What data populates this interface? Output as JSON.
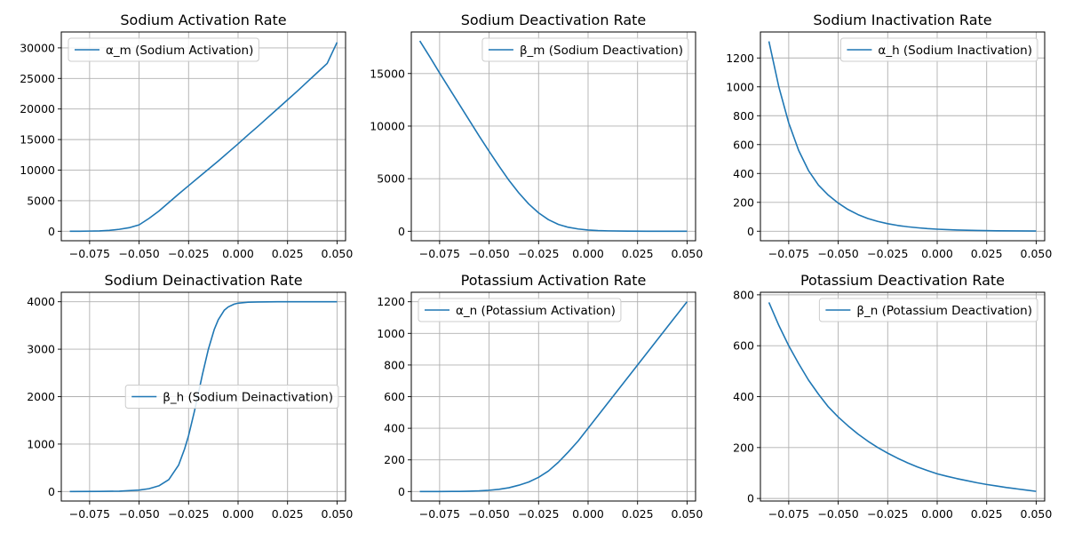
{
  "figure": {
    "line_color": "#1f77b4",
    "grid_color": "#b0b0b0",
    "background": "#ffffff",
    "grid": true
  },
  "chart_data": [
    {
      "type": "line",
      "title": "Sodium Activation Rate",
      "legend_loc": "upper-left",
      "xlim": [
        -0.0893,
        0.0543
      ],
      "ylim": [
        -1550,
        32600
      ],
      "xticks": [
        -0.075,
        -0.05,
        -0.025,
        0,
        0.025,
        0.05
      ],
      "xtick_labels": [
        "−0.075",
        "−0.050",
        "−0.025",
        "0.000",
        "0.025",
        "0.050"
      ],
      "yticks": [
        0,
        5000,
        10000,
        15000,
        20000,
        25000,
        30000
      ],
      "ytick_labels": [
        "0",
        "5000",
        "10000",
        "15000",
        "20000",
        "25000",
        "30000"
      ],
      "series": [
        {
          "name": "α_m (Sodium Activation)",
          "x": [
            -0.085,
            -0.08,
            -0.075,
            -0.07,
            -0.065,
            -0.06,
            -0.055,
            -0.05,
            -0.045,
            -0.04,
            -0.035,
            -0.03,
            -0.025,
            -0.02,
            -0.015,
            -0.01,
            -0.005,
            0,
            0.005,
            0.01,
            0.015,
            0.02,
            0.025,
            0.03,
            0.035,
            0.04,
            0.045,
            0.05
          ],
          "y": [
            5,
            10,
            30,
            60,
            150,
            320,
            580,
            1050,
            2100,
            3300,
            4700,
            6100,
            7450,
            8800,
            10150,
            11500,
            12900,
            14300,
            15750,
            17150,
            18600,
            20050,
            21500,
            22950,
            24450,
            25950,
            27450,
            30900
          ]
        }
      ]
    },
    {
      "type": "line",
      "title": "Sodium Deactivation Rate",
      "legend_loc": "upper-right",
      "xlim": [
        -0.0893,
        0.0543
      ],
      "ylim": [
        -900,
        18950
      ],
      "xticks": [
        -0.075,
        -0.05,
        -0.025,
        0,
        0.025,
        0.05
      ],
      "xtick_labels": [
        "−0.075",
        "−0.050",
        "−0.025",
        "0.000",
        "0.025",
        "0.050"
      ],
      "yticks": [
        0,
        5000,
        10000,
        15000
      ],
      "ytick_labels": [
        "0",
        "5000",
        "10000",
        "15000"
      ],
      "series": [
        {
          "name": "β_m (Sodium Deactivation)",
          "x": [
            -0.085,
            -0.08,
            -0.075,
            -0.07,
            -0.065,
            -0.06,
            -0.055,
            -0.05,
            -0.045,
            -0.04,
            -0.035,
            -0.03,
            -0.025,
            -0.02,
            -0.015,
            -0.01,
            -0.005,
            0,
            0.005,
            0.01,
            0.02,
            0.03,
            0.04,
            0.05
          ],
          "y": [
            18100,
            16600,
            15050,
            13550,
            12050,
            10550,
            9050,
            7600,
            6200,
            4850,
            3650,
            2600,
            1750,
            1100,
            650,
            380,
            220,
            120,
            70,
            40,
            15,
            5,
            2,
            1
          ]
        }
      ]
    },
    {
      "type": "line",
      "title": "Sodium Inactivation Rate",
      "legend_loc": "upper-right",
      "xlim": [
        -0.0893,
        0.0543
      ],
      "ylim": [
        -66,
        1380
      ],
      "xticks": [
        -0.075,
        -0.05,
        -0.025,
        0,
        0.025,
        0.05
      ],
      "xtick_labels": [
        "−0.075",
        "−0.050",
        "−0.025",
        "0.000",
        "0.025",
        "0.050"
      ],
      "yticks": [
        0,
        200,
        400,
        600,
        800,
        1000,
        1200
      ],
      "ytick_labels": [
        "0",
        "200",
        "400",
        "600",
        "800",
        "1000",
        "1200"
      ],
      "series": [
        {
          "name": "α_h (Sodium Inactivation)",
          "x": [
            -0.085,
            -0.08,
            -0.075,
            -0.07,
            -0.065,
            -0.06,
            -0.055,
            -0.05,
            -0.045,
            -0.04,
            -0.035,
            -0.03,
            -0.025,
            -0.02,
            -0.015,
            -0.01,
            -0.005,
            0,
            0.01,
            0.02,
            0.03,
            0.04,
            0.05
          ],
          "y": [
            1315,
            1000,
            750,
            560,
            420,
            320,
            250,
            195,
            150,
            115,
            88,
            68,
            52,
            40,
            31,
            24,
            18,
            14,
            8,
            5,
            3,
            2,
            1
          ]
        }
      ]
    },
    {
      "type": "line",
      "title": "Sodium Deinactivation Rate",
      "legend_loc": "center-right",
      "xlim": [
        -0.0893,
        0.0543
      ],
      "ylim": [
        -200,
        4200
      ],
      "xticks": [
        -0.075,
        -0.05,
        -0.025,
        0,
        0.025,
        0.05
      ],
      "xtick_labels": [
        "−0.075",
        "−0.050",
        "−0.025",
        "0.000",
        "0.025",
        "0.050"
      ],
      "yticks": [
        0,
        1000,
        2000,
        3000,
        4000
      ],
      "ytick_labels": [
        "0",
        "1000",
        "2000",
        "3000",
        "4000"
      ],
      "series": [
        {
          "name": "β_h (Sodium Deinactivation)",
          "x": [
            -0.085,
            -0.07,
            -0.06,
            -0.05,
            -0.045,
            -0.04,
            -0.035,
            -0.03,
            -0.027,
            -0.025,
            -0.022,
            -0.02,
            -0.018,
            -0.015,
            -0.012,
            -0.01,
            -0.007,
            -0.005,
            -0.002,
            0,
            0.005,
            0.01,
            0.02,
            0.03,
            0.05
          ],
          "y": [
            0,
            2,
            8,
            30,
            60,
            120,
            250,
            560,
            900,
            1180,
            1700,
            2080,
            2470,
            3000,
            3420,
            3620,
            3820,
            3890,
            3950,
            3970,
            3990,
            3996,
            4000,
            4000,
            4000
          ]
        }
      ]
    },
    {
      "type": "line",
      "title": "Potassium Activation Rate",
      "legend_loc": "upper-left",
      "xlim": [
        -0.0893,
        0.0543
      ],
      "ylim": [
        -60,
        1260
      ],
      "xticks": [
        -0.075,
        -0.05,
        -0.025,
        0,
        0.025,
        0.05
      ],
      "xtick_labels": [
        "−0.075",
        "−0.050",
        "−0.025",
        "0.000",
        "0.025",
        "0.050"
      ],
      "yticks": [
        0,
        200,
        400,
        600,
        800,
        1000,
        1200
      ],
      "ytick_labels": [
        "0",
        "200",
        "400",
        "600",
        "800",
        "1000",
        "1200"
      ],
      "series": [
        {
          "name": "α_n (Potassium Activation)",
          "x": [
            -0.085,
            -0.075,
            -0.065,
            -0.06,
            -0.055,
            -0.05,
            -0.045,
            -0.04,
            -0.035,
            -0.03,
            -0.025,
            -0.02,
            -0.015,
            -0.01,
            -0.005,
            0,
            0.005,
            0.01,
            0.015,
            0.02,
            0.025,
            0.03,
            0.035,
            0.04,
            0.045,
            0.05
          ],
          "y": [
            0,
            0,
            1,
            2,
            4,
            8,
            14,
            24,
            40,
            60,
            90,
            130,
            185,
            250,
            320,
            400,
            480,
            560,
            640,
            720,
            800,
            880,
            960,
            1040,
            1120,
            1200
          ]
        }
      ]
    },
    {
      "type": "line",
      "title": "Potassium Deactivation Rate",
      "legend_loc": "upper-right",
      "xlim": [
        -0.0893,
        0.0543
      ],
      "ylim": [
        -10,
        810
      ],
      "xticks": [
        -0.075,
        -0.05,
        -0.025,
        0,
        0.025,
        0.05
      ],
      "xtick_labels": [
        "−0.075",
        "−0.050",
        "−0.025",
        "0.000",
        "0.025",
        "0.050"
      ],
      "yticks": [
        0,
        200,
        400,
        600,
        800
      ],
      "ytick_labels": [
        "0",
        "200",
        "400",
        "600",
        "800"
      ],
      "series": [
        {
          "name": "β_n (Potassium Deactivation)",
          "x": [
            -0.085,
            -0.08,
            -0.075,
            -0.07,
            -0.065,
            -0.06,
            -0.055,
            -0.05,
            -0.045,
            -0.04,
            -0.035,
            -0.03,
            -0.025,
            -0.02,
            -0.015,
            -0.01,
            -0.005,
            0,
            0.005,
            0.01,
            0.015,
            0.02,
            0.025,
            0.03,
            0.035,
            0.04,
            0.045,
            0.05
          ],
          "y": [
            770,
            680,
            600,
            530,
            465,
            410,
            360,
            320,
            285,
            253,
            225,
            200,
            178,
            158,
            140,
            124,
            110,
            97,
            87,
            78,
            70,
            62,
            55,
            49,
            43,
            38,
            33,
            28
          ]
        }
      ]
    }
  ]
}
